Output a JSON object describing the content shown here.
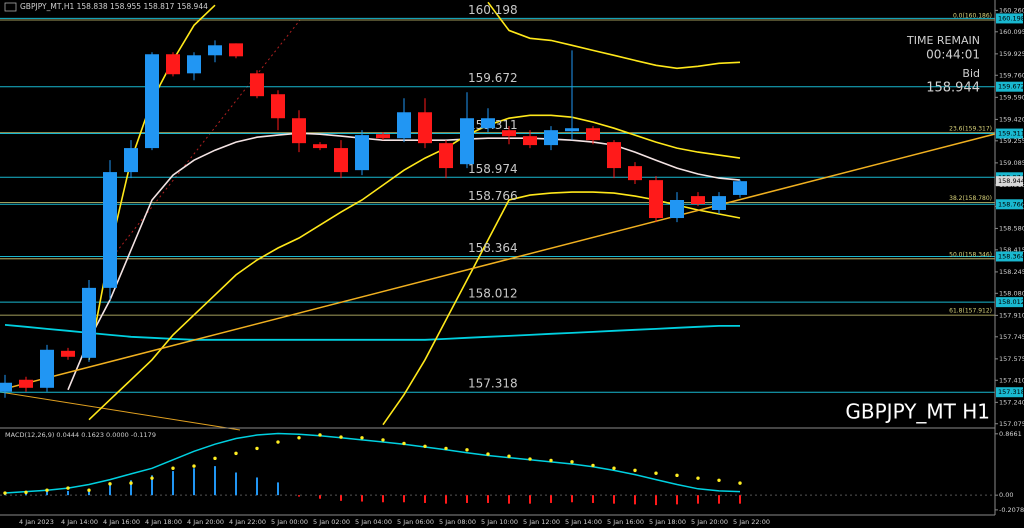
{
  "header": {
    "quote_label": "GBPJPY_MT,H1",
    "quote_values": [
      158.838,
      158.955,
      158.817,
      158.944
    ]
  },
  "info": {
    "time_label": "TIME REMAIN",
    "time_value": "00:44:01",
    "bid_label": "Bid",
    "bid": 158.944
  },
  "watermark": "GBPJPY_MT H1",
  "chart_data": [
    {
      "type": "candlestick",
      "categories": [
        null,
        "4 Jan 2023",
        null,
        "4 Jan 14:00",
        null,
        "4 Jan 16:00",
        null,
        "4 Jan 18:00",
        null,
        "4 Jan 20:00",
        null,
        "4 Jan 22:00",
        null,
        "5 Jan 00:00",
        null,
        "5 Jan 02:00",
        null,
        "5 Jan 04:00",
        null,
        "5 Jan 06:00",
        null,
        "5 Jan 08:00",
        null,
        "5 Jan 10:00",
        null,
        "5 Jan 12:00",
        null,
        "5 Jan 14:00",
        null,
        "5 Jan 16:00",
        null,
        "5 Jan 18:00",
        null,
        "5 Jan 20:00",
        null,
        "5 Jan 22:00"
      ],
      "open": [
        157.322,
        157.414,
        157.352,
        157.637,
        157.583,
        158.122,
        159.014,
        159.199,
        159.922,
        159.775,
        159.914,
        160.006,
        159.775,
        159.614,
        159.429,
        159.229,
        159.199,
        159.029,
        159.306,
        159.275,
        159.475,
        159.237,
        159.075,
        159.352,
        159.337,
        159.291,
        159.222,
        159.329,
        159.352,
        159.245,
        159.06,
        158.952,
        158.66,
        158.829,
        158.722,
        158.838
      ],
      "high": [
        157.452,
        157.437,
        157.683,
        157.66,
        158.183,
        159.106,
        159.26,
        159.937,
        159.937,
        159.937,
        160.029,
        160.006,
        159.799,
        159.645,
        159.491,
        159.245,
        159.26,
        159.337,
        159.322,
        159.583,
        159.583,
        159.26,
        159.629,
        159.506,
        159.368,
        159.337,
        159.368,
        159.952,
        159.368,
        159.26,
        159.091,
        158.983,
        158.86,
        158.86,
        158.86,
        158.955
      ],
      "low": [
        157.275,
        157.322,
        157.322,
        157.568,
        157.552,
        158.029,
        158.968,
        159.183,
        159.752,
        159.722,
        159.86,
        159.891,
        159.583,
        159.337,
        159.168,
        159.183,
        158.968,
        158.991,
        159.26,
        159.245,
        159.199,
        158.968,
        159.045,
        159.322,
        159.229,
        159.199,
        159.183,
        159.26,
        159.229,
        158.968,
        158.922,
        158.629,
        158.629,
        158.752,
        158.691,
        158.817
      ],
      "close": [
        157.391,
        157.352,
        157.645,
        157.591,
        158.122,
        159.014,
        159.199,
        159.922,
        159.768,
        159.914,
        159.991,
        159.906,
        159.599,
        159.429,
        159.237,
        159.199,
        159.014,
        159.299,
        159.275,
        159.475,
        159.237,
        159.045,
        159.429,
        159.429,
        159.291,
        159.222,
        159.337,
        159.352,
        159.26,
        159.045,
        158.952,
        158.66,
        158.799,
        158.768,
        158.829,
        158.944
      ],
      "up_color": "#2196f3",
      "down_color": "#ff1a1a",
      "overlays": [
        {
          "color": "#00d0e0",
          "values": [
            157.837,
            157.822,
            157.806,
            157.791,
            157.775,
            157.76,
            157.745,
            157.737,
            157.729,
            157.722,
            157.722,
            157.722,
            157.722,
            157.722,
            157.722,
            157.722,
            157.722,
            157.722,
            157.722,
            157.722,
            157.722,
            157.729,
            157.737,
            157.745,
            157.752,
            157.76,
            157.768,
            157.775,
            157.783,
            157.791,
            157.799,
            157.806,
            157.814,
            157.822,
            157.829,
            157.829
          ]
        },
        {
          "color": "#f3e3e3",
          "values": [
            null,
            null,
            null,
            157.337,
            157.722,
            158.029,
            158.414,
            158.799,
            158.991,
            159.106,
            159.183,
            159.245,
            159.283,
            159.299,
            159.314,
            159.306,
            159.291,
            159.275,
            159.26,
            159.26,
            159.26,
            159.26,
            159.268,
            159.275,
            159.275,
            159.275,
            159.268,
            159.26,
            159.245,
            159.222,
            159.168,
            159.106,
            159.045,
            158.999,
            158.968,
            158.952
          ]
        },
        {
          "color": "#ffe81a",
          "values": [
            null,
            null,
            null,
            null,
            157.106,
            157.26,
            157.414,
            157.568,
            157.76,
            157.914,
            158.068,
            158.222,
            158.337,
            158.429,
            158.506,
            158.606,
            158.706,
            158.799,
            158.914,
            159.029,
            159.122,
            159.199,
            159.299,
            159.375,
            159.429,
            159.452,
            159.452,
            159.437,
            159.399,
            159.352,
            159.299,
            159.245,
            159.199,
            159.168,
            159.145,
            159.122
          ]
        },
        {
          "color": "#ffe81a",
          "values": [
            null,
            null,
            null,
            null,
            null,
            null,
            null,
            null,
            null,
            null,
            null,
            null,
            null,
            null,
            null,
            null,
            null,
            null,
            157.068,
            157.299,
            157.568,
            157.875,
            158.183,
            158.491,
            158.799,
            158.837,
            158.852,
            158.86,
            158.86,
            158.852,
            158.829,
            158.799,
            158.76,
            158.722,
            158.691,
            158.66
          ]
        },
        {
          "color": "#ffe81a",
          "values": [
            null,
            null,
            null,
            null,
            157.568,
            158.414,
            159.106,
            159.568,
            159.875,
            160.145,
            160.3,
            null,
            null,
            null,
            null,
            null,
            null,
            null,
            null,
            null,
            null,
            null,
            null,
            160.322,
            160.106,
            160.045,
            160.029,
            159.991,
            159.952,
            159.914,
            159.875,
            159.837,
            159.814,
            159.829,
            159.852,
            159.86
          ]
        }
      ],
      "levels": [
        160.198,
        159.672,
        159.311,
        158.974,
        158.766,
        158.364,
        158.012,
        157.318
      ],
      "level_color": "#19b8d0",
      "fib_levels": [
        {
          "value": 160.186,
          "label": "0.0(160.186)"
        },
        {
          "value": 159.317,
          "label": "23.6(159.317)"
        },
        {
          "value": 158.78,
          "label": "38.2(158.780)"
        },
        {
          "value": 158.346,
          "label": "50.0(158.346)"
        },
        {
          "value": 157.912,
          "label": "61.8(157.912)"
        }
      ],
      "fib_color": "#d8d27a",
      "ylim": [
        157.05,
        160.34
      ],
      "yticks": [
        {
          "value": 160.26,
          "label": "160.260"
        },
        160.095,
        159.925,
        {
          "value": 159.76,
          "label": "159.760"
        },
        {
          "value": 159.59,
          "label": "159.590"
        },
        {
          "value": 159.42,
          "label": "159.420"
        },
        159.255,
        159.085,
        158.915,
        {
          "value": 158.75,
          "label": "158.750"
        },
        {
          "value": 158.58,
          "label": "158.580"
        },
        158.415,
        158.245,
        {
          "value": 158.08,
          "label": "158.080"
        },
        {
          "value": 157.91,
          "label": "157.910"
        },
        157.745,
        157.575,
        {
          "value": 157.41,
          "label": "157.410"
        },
        {
          "value": 157.24,
          "label": "157.240"
        },
        157.075
      ]
    },
    {
      "type": "macd",
      "title": "MACD(12,26,9) 0.0444 0.1623 0.0000 -0.1179",
      "histogram": {
        "up_color": "#2196f3",
        "down_color": "#ff1a1a",
        "values": [
          0.02,
          0.03,
          0.05,
          0.06,
          0.09,
          0.16,
          0.21,
          0.28,
          0.34,
          0.38,
          0.41,
          0.32,
          0.25,
          0.18,
          -0.02,
          -0.05,
          -0.08,
          -0.09,
          -0.1,
          -0.1,
          -0.11,
          -0.12,
          -0.11,
          -0.11,
          -0.12,
          -0.12,
          -0.11,
          -0.1,
          -0.11,
          -0.12,
          -0.13,
          -0.14,
          -0.13,
          -0.12,
          -0.12,
          -0.12
        ]
      },
      "line": {
        "color": "#00d0e0",
        "values": [
          0.03,
          0.05,
          0.07,
          0.1,
          0.15,
          0.22,
          0.3,
          0.38,
          0.5,
          0.62,
          0.72,
          0.8,
          0.85,
          0.87,
          0.86,
          0.84,
          0.81,
          0.78,
          0.75,
          0.72,
          0.68,
          0.64,
          0.6,
          0.56,
          0.53,
          0.5,
          0.47,
          0.44,
          0.4,
          0.35,
          0.29,
          0.22,
          0.15,
          0.09,
          0.06,
          0.05
        ]
      },
      "dots": {
        "color": "#ffee22",
        "values": [
          0.03,
          0.04,
          0.07,
          0.1,
          0.07,
          0.16,
          0.17,
          0.24,
          0.38,
          0.41,
          0.52,
          0.59,
          0.66,
          0.75,
          0.81,
          0.85,
          0.82,
          0.81,
          0.78,
          0.73,
          0.69,
          0.66,
          0.64,
          0.58,
          0.55,
          0.51,
          0.49,
          0.47,
          0.42,
          0.38,
          0.35,
          0.31,
          0.28,
          0.24,
          0.21,
          0.17
        ]
      },
      "ylim": [
        -0.28,
        0.92
      ],
      "yticks": [
        0.8661,
        {
          "value": 0,
          "label": "0.00"
        },
        -0.2078
      ]
    }
  ]
}
